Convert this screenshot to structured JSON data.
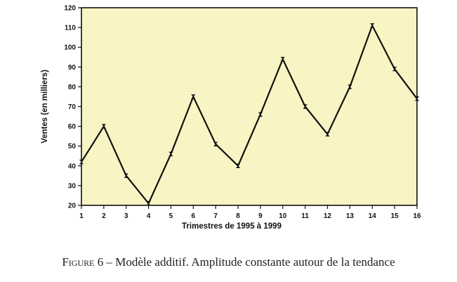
{
  "chart_data": {
    "type": "line",
    "xlabel": "Trimestres  de 1995 à 1999",
    "ylabel": "Ventes (en milliers)",
    "x": [
      1,
      2,
      3,
      4,
      5,
      6,
      7,
      8,
      9,
      10,
      11,
      12,
      13,
      14,
      15,
      16
    ],
    "xticks": [
      "1",
      "2",
      "3",
      "4",
      "5",
      "6",
      "7",
      "8",
      "9",
      "10",
      "11",
      "12",
      "13",
      "14",
      "15",
      "16"
    ],
    "yticks": [
      20,
      30,
      40,
      50,
      60,
      70,
      80,
      90,
      100,
      110,
      120
    ],
    "ylim": [
      20,
      120
    ],
    "xlim": [
      1,
      16
    ],
    "series": [
      {
        "values": [
          42,
          60,
          35,
          21,
          46,
          75,
          51,
          40,
          66,
          94,
          70,
          56,
          80,
          111,
          89,
          74
        ]
      }
    ],
    "grid": false,
    "colors": {
      "plot_background": "#f9f4c3",
      "line": "#111111"
    }
  },
  "caption": {
    "label": "Figure 6",
    "separator": " – ",
    "text": "Modèle additif. Amplitude constante autour de la tendance"
  }
}
